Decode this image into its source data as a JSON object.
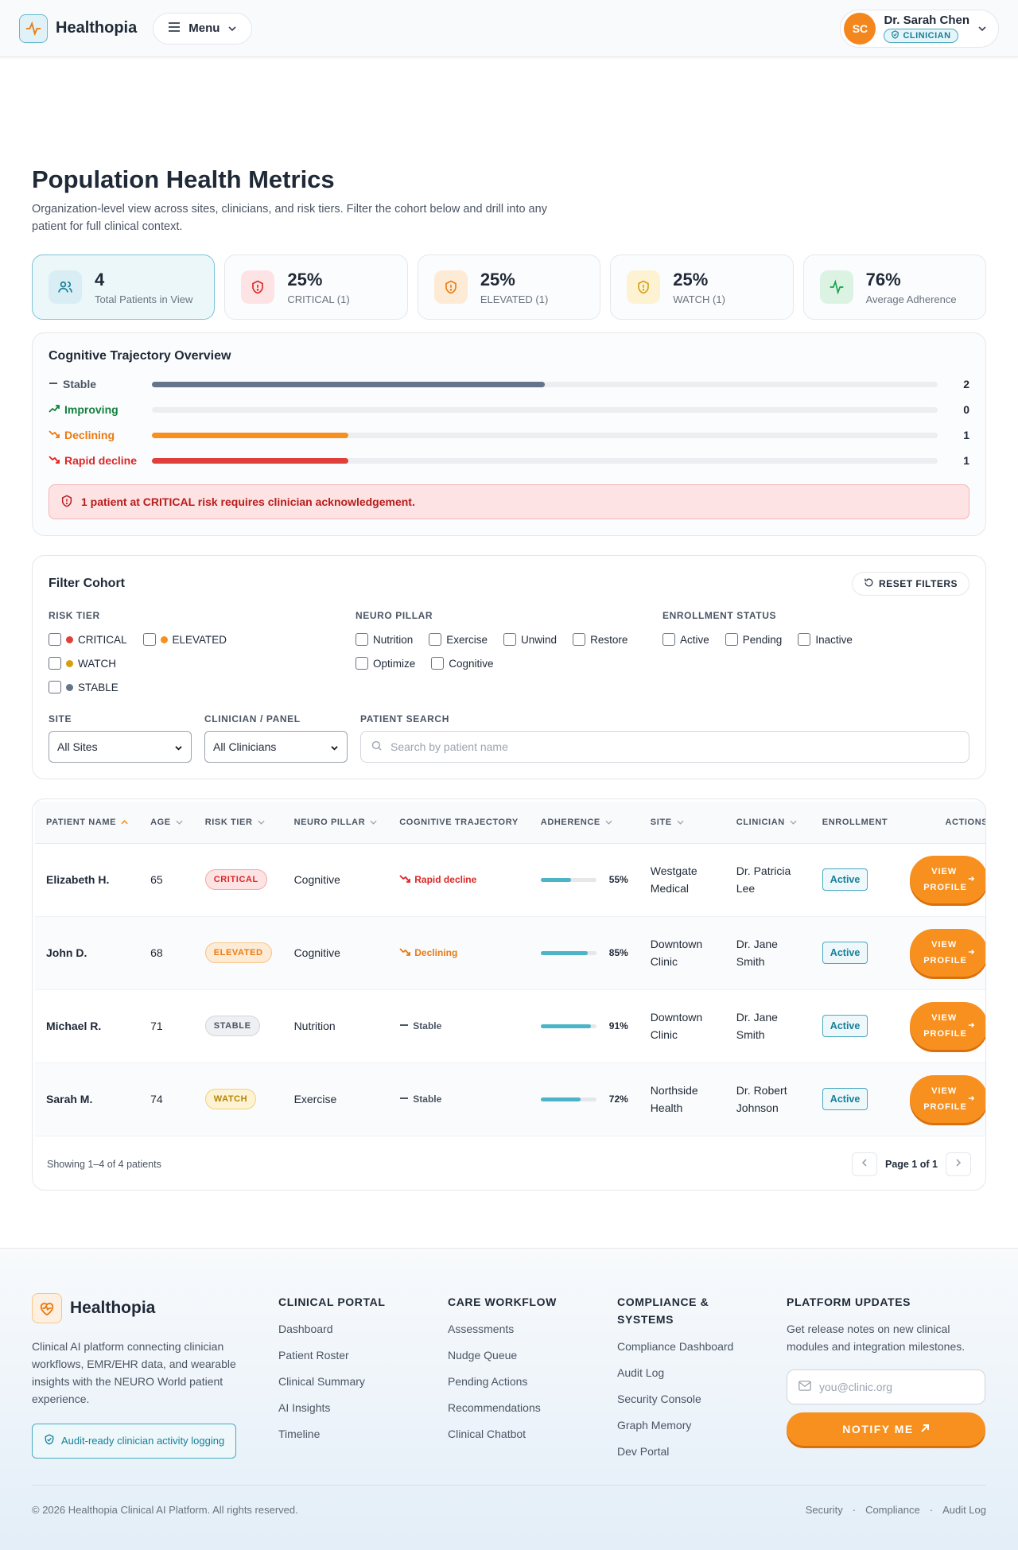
{
  "header": {
    "brand": "Healthopia",
    "menu_label": "Menu",
    "user": {
      "initials": "SC",
      "name": "Dr. Sarah Chen",
      "role": "CLINICIAN"
    }
  },
  "page": {
    "title": "Population Health Metrics",
    "subtitle": "Organization-level view across sites, clinicians, and risk tiers. Filter the cohort below and drill into any patient for full clinical context."
  },
  "stats": [
    {
      "value": "4",
      "label": "Total Patients in View",
      "icon": "users-icon",
      "color": "#157f99"
    },
    {
      "value": "25%",
      "label": "CRITICAL (1)",
      "icon": "shield-icon",
      "color": "#dc2626"
    },
    {
      "value": "25%",
      "label": "ELEVATED (1)",
      "icon": "shield-icon",
      "color": "#ea7a10"
    },
    {
      "value": "25%",
      "label": "WATCH (1)",
      "icon": "shield-icon",
      "color": "#d4a012"
    },
    {
      "value": "76%",
      "label": "Average Adherence",
      "icon": "activity-icon",
      "color": "#16a34a"
    }
  ],
  "trajectory": {
    "title": "Cognitive Trajectory Overview",
    "total": 2,
    "rows": [
      {
        "label": "Stable",
        "count": 2,
        "color": "#64748b",
        "text_color": "#4b5563",
        "icon": "minus-icon"
      },
      {
        "label": "Improving",
        "count": 0,
        "color": "#16a34a",
        "text_color": "#15803d",
        "icon": "trending-up-icon"
      },
      {
        "label": "Declining",
        "count": 1,
        "color": "#f7901e",
        "text_color": "#ea7a10",
        "icon": "trending-down-icon"
      },
      {
        "label": "Rapid decline",
        "count": 1,
        "color": "#e0403a",
        "text_color": "#dc2626",
        "icon": "trending-down-icon"
      }
    ],
    "alert": "1 patient at CRITICAL risk requires clinician acknowledgement."
  },
  "filters": {
    "title": "Filter Cohort",
    "reset_label": "RESET FILTERS",
    "risk_tier": {
      "label": "RISK TIER",
      "options": [
        {
          "label": "CRITICAL",
          "color": "#e0403a"
        },
        {
          "label": "ELEVATED",
          "color": "#f7901e"
        },
        {
          "label": "WATCH",
          "color": "#d4a012"
        },
        {
          "label": "STABLE",
          "color": "#64748b"
        }
      ]
    },
    "neuro_pillar": {
      "label": "NEURO PILLAR",
      "options": [
        "Nutrition",
        "Exercise",
        "Unwind",
        "Restore",
        "Optimize",
        "Cognitive"
      ]
    },
    "enrollment": {
      "label": "ENROLLMENT STATUS",
      "options": [
        "Active",
        "Pending",
        "Inactive"
      ]
    },
    "site": {
      "label": "SITE",
      "value": "All Sites"
    },
    "clinician": {
      "label": "CLINICIAN / PANEL",
      "value": "All Clinicians"
    },
    "search": {
      "label": "PATIENT SEARCH",
      "placeholder": "Search by patient name"
    }
  },
  "table": {
    "columns": [
      "PATIENT NAME",
      "AGE",
      "RISK TIER",
      "NEURO PILLAR",
      "COGNITIVE TRAJECTORY",
      "ADHERENCE",
      "SITE",
      "CLINICIAN",
      "ENROLLMENT",
      "ACTIONS"
    ],
    "rows": [
      {
        "name": "Elizabeth H.",
        "age": "65",
        "risk": "CRITICAL",
        "pillar": "Cognitive",
        "trajectory": "Rapid decline",
        "adherence": 55,
        "adherence_label": "55%",
        "site": "Westgate Medical",
        "clinician": "Dr. Patricia Lee",
        "enrollment": "Active"
      },
      {
        "name": "John D.",
        "age": "68",
        "risk": "ELEVATED",
        "pillar": "Cognitive",
        "trajectory": "Declining",
        "adherence": 85,
        "adherence_label": "85%",
        "site": "Downtown Clinic",
        "clinician": "Dr. Jane Smith",
        "enrollment": "Active"
      },
      {
        "name": "Michael R.",
        "age": "71",
        "risk": "STABLE",
        "pillar": "Nutrition",
        "trajectory": "Stable",
        "adherence": 91,
        "adherence_label": "91%",
        "site": "Downtown Clinic",
        "clinician": "Dr. Jane Smith",
        "enrollment": "Active"
      },
      {
        "name": "Sarah M.",
        "age": "74",
        "risk": "WATCH",
        "pillar": "Exercise",
        "trajectory": "Stable",
        "adherence": 72,
        "adherence_label": "72%",
        "site": "Northside Health",
        "clinician": "Dr. Robert Johnson",
        "enrollment": "Active"
      }
    ],
    "action_label": "VIEW PROFILE",
    "showing": "Showing 1–4 of 4 patients",
    "page_label": "Page 1 of 1"
  },
  "footer": {
    "brand": "Healthopia",
    "description": "Clinical AI platform connecting clinician workflows, EMR/EHR data, and wearable insights with the NEURO World patient experience.",
    "audit_badge": "Audit-ready clinician activity logging",
    "columns": [
      {
        "title": "CLINICAL PORTAL",
        "links": [
          "Dashboard",
          "Patient Roster",
          "Clinical Summary",
          "AI Insights",
          "Timeline"
        ]
      },
      {
        "title": "CARE WORKFLOW",
        "links": [
          "Assessments",
          "Nudge Queue",
          "Pending Actions",
          "Recommendations",
          "Clinical Chatbot"
        ]
      },
      {
        "title": "COMPLIANCE & SYSTEMS",
        "links": [
          "Compliance Dashboard",
          "Audit Log",
          "Security Console",
          "Graph Memory",
          "Dev Portal"
        ]
      }
    ],
    "updates": {
      "title": "PLATFORM UPDATES",
      "text": "Get release notes on new clinical modules and integration milestones.",
      "placeholder": "you@clinic.org",
      "button": "NOTIFY ME"
    },
    "copyright": "© 2026 Healthopia Clinical AI Platform. All rights reserved.",
    "links": [
      "Security",
      "Compliance",
      "Audit Log"
    ]
  }
}
